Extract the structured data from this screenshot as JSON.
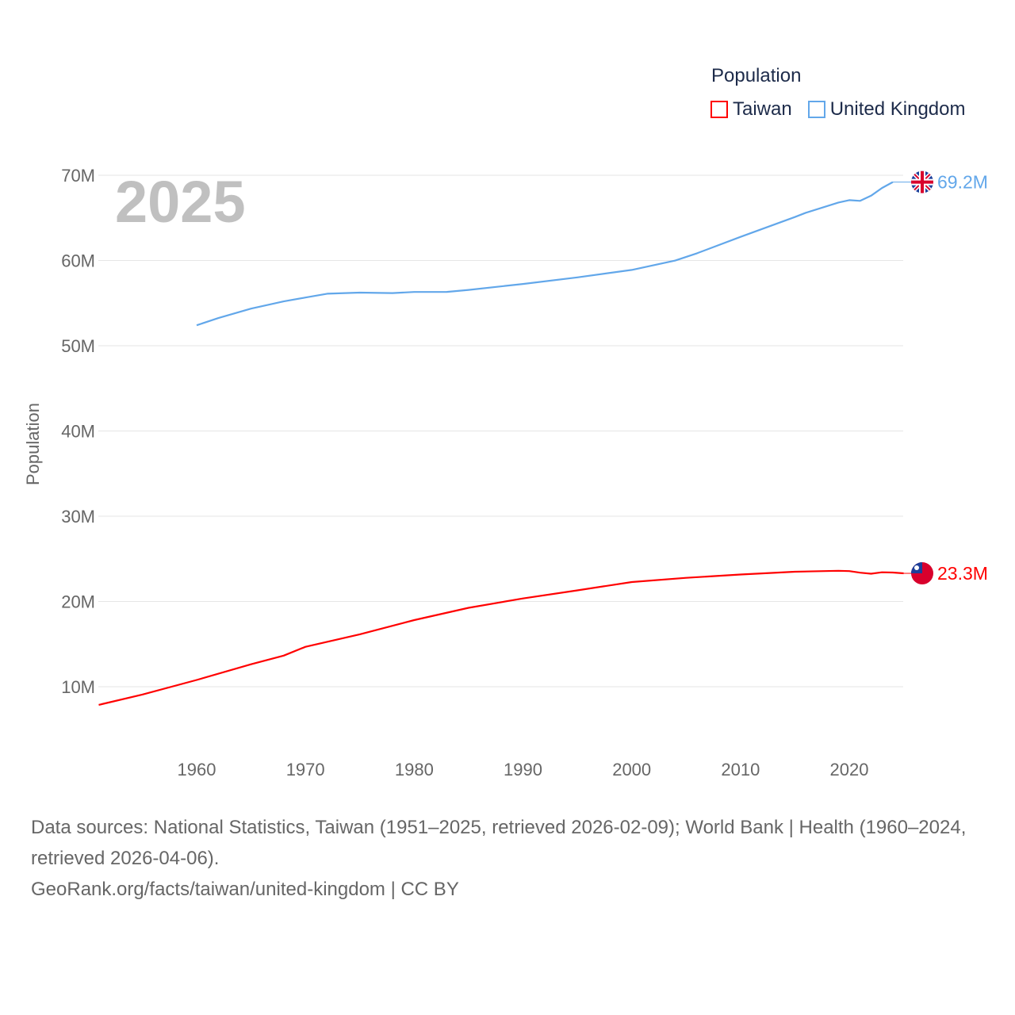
{
  "chart_data": {
    "type": "line",
    "title": "Population",
    "year_label": "2025",
    "ylabel": "Population",
    "xlabel": "",
    "xlim": [
      1951,
      2025
    ],
    "ylim": [
      0,
      70000000
    ],
    "x_ticks": [
      1960,
      1970,
      1980,
      1990,
      2000,
      2010,
      2020
    ],
    "y_ticks": [
      10000000,
      20000000,
      30000000,
      40000000,
      50000000,
      60000000,
      70000000
    ],
    "y_tick_labels": [
      "10M",
      "20M",
      "30M",
      "40M",
      "50M",
      "60M",
      "70M"
    ],
    "grid": true,
    "legend_position": "top-right",
    "series": [
      {
        "name": "Taiwan",
        "color": "#ff0000",
        "end_label": "23.3M",
        "flag": "taiwan-flag",
        "points": [
          [
            1951,
            7.87
          ],
          [
            1955,
            9.08
          ],
          [
            1960,
            10.79
          ],
          [
            1965,
            12.63
          ],
          [
            1968,
            13.65
          ],
          [
            1970,
            14.68
          ],
          [
            1975,
            16.15
          ],
          [
            1980,
            17.81
          ],
          [
            1985,
            19.26
          ],
          [
            1990,
            20.35
          ],
          [
            1995,
            21.3
          ],
          [
            2000,
            22.28
          ],
          [
            2005,
            22.77
          ],
          [
            2010,
            23.16
          ],
          [
            2015,
            23.49
          ],
          [
            2019,
            23.6
          ],
          [
            2020,
            23.56
          ],
          [
            2021,
            23.38
          ],
          [
            2022,
            23.26
          ],
          [
            2023,
            23.42
          ],
          [
            2024,
            23.4
          ],
          [
            2025,
            23.3
          ]
        ]
      },
      {
        "name": "United Kingdom",
        "color": "#62a7ea",
        "end_label": "69.2M",
        "flag": "uk-flag",
        "points": [
          [
            1960,
            52.4
          ],
          [
            1962,
            53.25
          ],
          [
            1965,
            54.35
          ],
          [
            1968,
            55.2
          ],
          [
            1970,
            55.66
          ],
          [
            1972,
            56.1
          ],
          [
            1975,
            56.23
          ],
          [
            1978,
            56.18
          ],
          [
            1980,
            56.31
          ],
          [
            1983,
            56.32
          ],
          [
            1985,
            56.55
          ],
          [
            1990,
            57.25
          ],
          [
            1995,
            58.02
          ],
          [
            2000,
            58.89
          ],
          [
            2004,
            59.99
          ],
          [
            2006,
            60.85
          ],
          [
            2010,
            62.77
          ],
          [
            2012,
            63.7
          ],
          [
            2015,
            65.1
          ],
          [
            2016,
            65.6
          ],
          [
            2019,
            66.8
          ],
          [
            2020,
            67.08
          ],
          [
            2021,
            67.0
          ],
          [
            2022,
            67.6
          ],
          [
            2023,
            68.5
          ],
          [
            2024,
            69.2
          ]
        ]
      }
    ]
  },
  "footer": {
    "sources": "Data sources: National Statistics, Taiwan (1951–2025, retrieved 2026-02-09); World Bank | Health (1960–2024, retrieved 2026-04-06).",
    "credit": "GeoRank.org/facts/taiwan/united-kingdom | CC BY"
  }
}
